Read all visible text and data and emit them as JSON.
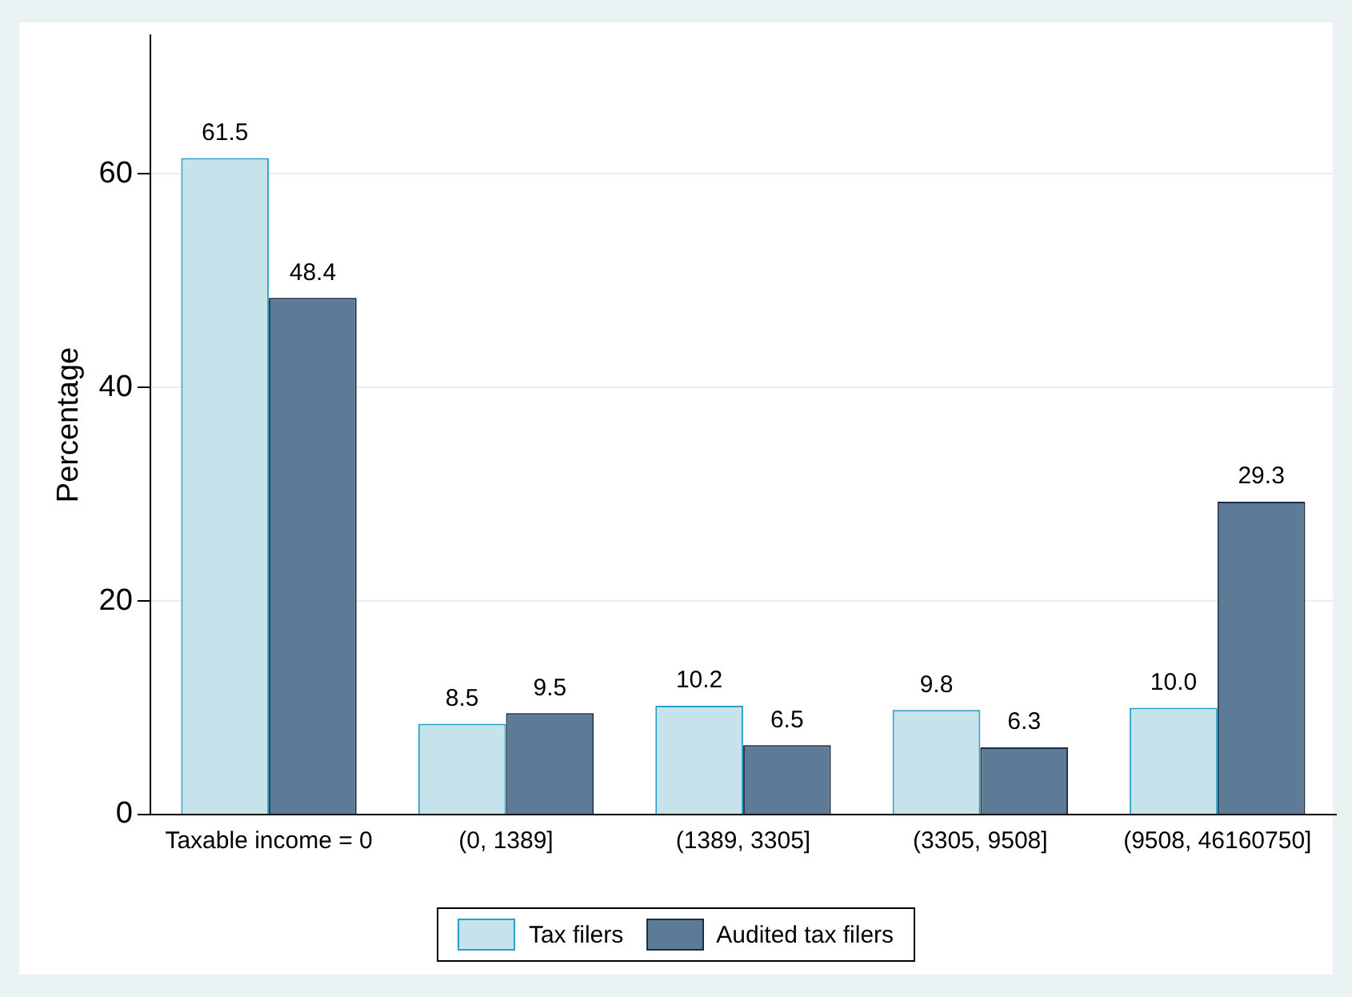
{
  "chart_data": {
    "type": "bar",
    "ylabel": "Percentage",
    "categories": [
      "Taxable income = 0",
      "(0, 1389]",
      "(1389, 3305]",
      "(3305, 9508]",
      "(9508, 46160750]"
    ],
    "series": [
      {
        "name": "Tax filers",
        "color": "#c6e3ec",
        "values": [
          61.5,
          8.5,
          10.2,
          9.8,
          10.0
        ],
        "value_labels": [
          "61.5",
          "8.5",
          "10.2",
          "9.8",
          "10.0"
        ]
      },
      {
        "name": "Audited tax filers",
        "color": "#5d7a96",
        "values": [
          48.4,
          9.5,
          6.5,
          6.3,
          29.3
        ],
        "value_labels": [
          "48.4",
          "9.5",
          "6.5",
          "6.3",
          "29.3"
        ]
      }
    ],
    "ylim": [
      0,
      73
    ],
    "yticks": [
      0,
      20,
      40,
      60
    ],
    "grid": "y",
    "legend": "bottom"
  }
}
